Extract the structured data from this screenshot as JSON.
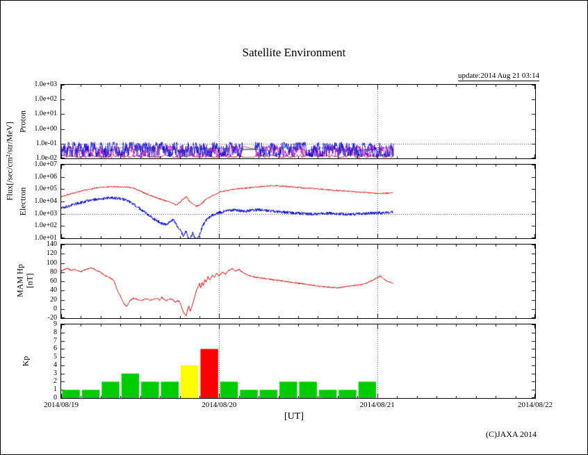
{
  "title": "Satellite Environment",
  "update_text": "update:2014 Aug 21 03:14",
  "copyright": "(C)JAXA 2014",
  "x_axis": {
    "label": "[UT]",
    "tick_labels": [
      "2014/08/19",
      "2014/08/20",
      "2014/08/21",
      "2014/08/22"
    ],
    "tick_hours": [
      0,
      24,
      48,
      72
    ],
    "range_hours": [
      0,
      72
    ]
  },
  "axis_labels": {
    "flux": "Flux[/sec/cm²/str/MeV]",
    "proton": "Proton",
    "electron": "Electron",
    "mam_hp": "MAM Hp",
    "mam_hp_unit": "[nT]",
    "kp": "Kp"
  },
  "chart_data": [
    {
      "id": "proton",
      "type": "line",
      "yscale": "log",
      "ylim": [
        0.01,
        1000
      ],
      "ytick_labels": [
        "1.0e+03",
        "1.0e+02",
        "1.0e+01",
        "1.0e+00",
        "1.0e-01",
        "1.0e-02"
      ],
      "ytick_values": [
        1000,
        100,
        10,
        1,
        0.1,
        0.01
      ],
      "x_gridlines_hours": [
        24,
        48
      ],
      "h_gridlines_values": [
        0.1
      ],
      "data_end_hour": 50.5,
      "gap_hours": [
        27.6,
        29.4
      ],
      "noise_series": [
        {
          "name": "proton-channel-darkred",
          "color": "#990000",
          "band": [
            0.011,
            0.018
          ],
          "walk": 0.2,
          "seed": 11
        },
        {
          "name": "proton-channel-green",
          "color": "#009900",
          "band": [
            0.032,
            0.055
          ],
          "walk": 0.12,
          "seed": 22
        },
        {
          "name": "proton-channel-magenta",
          "color": "#bb00bb",
          "band": [
            0.012,
            0.08
          ],
          "walk": 0.3,
          "seed": 33
        },
        {
          "name": "proton-channel-blue",
          "color": "#0000cc",
          "band": [
            0.012,
            0.13
          ],
          "walk": 0.32,
          "seed": 44
        }
      ]
    },
    {
      "id": "electron",
      "type": "line",
      "yscale": "log",
      "ylim": [
        10,
        10000000
      ],
      "ytick_labels": [
        "1.0e+07",
        "1.0e+06",
        "1.0e+05",
        "1.0e+04",
        "1.0e+03",
        "1.0e+02",
        "1.0e+01"
      ],
      "ytick_values": [
        10000000,
        1000000,
        100000,
        10000,
        1000,
        100,
        10
      ],
      "x_gridlines_hours": [
        24,
        48
      ],
      "h_gridlines_values": [
        1000
      ],
      "data_end_hour": 50.4,
      "series": [
        {
          "name": "electron-low-energy-blue",
          "color": "#0000cc",
          "noise_log": 0.12,
          "seed": 8,
          "keypoints": [
            [
              0,
              3000
            ],
            [
              1,
              4000
            ],
            [
              2,
              6000
            ],
            [
              3,
              8000
            ],
            [
              4,
              11000
            ],
            [
              5,
              14000
            ],
            [
              6,
              17000
            ],
            [
              7,
              19000
            ],
            [
              8,
              20000
            ],
            [
              9,
              17000
            ],
            [
              10,
              12000
            ],
            [
              11,
              6000
            ],
            [
              12,
              2500
            ],
            [
              13,
              1000
            ],
            [
              14,
              400
            ],
            [
              15,
              200
            ],
            [
              15.5,
              150
            ],
            [
              16,
              120
            ],
            [
              16.5,
              200
            ],
            [
              17,
              350
            ],
            [
              17.3,
              200
            ],
            [
              17.6,
              100
            ],
            [
              18,
              60
            ],
            [
              18.3,
              30
            ],
            [
              18.6,
              15
            ],
            [
              19,
              40
            ],
            [
              19.3,
              12
            ],
            [
              19.6,
              8
            ],
            [
              20,
              30
            ],
            [
              20.3,
              10
            ],
            [
              20.6,
              7
            ],
            [
              21,
              20
            ],
            [
              21.5,
              100
            ],
            [
              22,
              300
            ],
            [
              22.5,
              500
            ],
            [
              23,
              800
            ],
            [
              24,
              1200
            ],
            [
              25,
              1600
            ],
            [
              26,
              2000
            ],
            [
              27,
              1800
            ],
            [
              28,
              1600
            ],
            [
              29,
              1900
            ],
            [
              30,
              2100
            ],
            [
              31,
              1800
            ],
            [
              32,
              1600
            ],
            [
              33,
              1400
            ],
            [
              34,
              1300
            ],
            [
              35,
              1200
            ],
            [
              36,
              1100
            ],
            [
              37,
              1000
            ],
            [
              38,
              950
            ],
            [
              39,
              1000
            ],
            [
              40,
              1050
            ],
            [
              41,
              1100
            ],
            [
              42,
              1000
            ],
            [
              43,
              950
            ],
            [
              44,
              900
            ],
            [
              45,
              950
            ],
            [
              46,
              1000
            ],
            [
              47,
              1100
            ],
            [
              48,
              1150
            ],
            [
              49,
              1200
            ],
            [
              50.4,
              1300
            ]
          ]
        },
        {
          "name": "electron-high-energy-red",
          "color": "#cc0000",
          "noise_log": 0.05,
          "seed": 7,
          "keypoints": [
            [
              0,
              25000
            ],
            [
              1,
              35000
            ],
            [
              2,
              50000
            ],
            [
              3,
              70000
            ],
            [
              4,
              90000
            ],
            [
              5,
              115000
            ],
            [
              6,
              140000
            ],
            [
              7,
              155000
            ],
            [
              8,
              160000
            ],
            [
              9,
              145000
            ],
            [
              10,
              150000
            ],
            [
              11,
              120000
            ],
            [
              12,
              70000
            ],
            [
              13,
              40000
            ],
            [
              14,
              25000
            ],
            [
              15,
              16000
            ],
            [
              16,
              11000
            ],
            [
              17,
              7000
            ],
            [
              17.5,
              5000
            ],
            [
              18,
              8000
            ],
            [
              18.5,
              15000
            ],
            [
              19,
              25000
            ],
            [
              19.3,
              15000
            ],
            [
              19.6,
              9000
            ],
            [
              20,
              6000
            ],
            [
              20.5,
              4000
            ],
            [
              21,
              5000
            ],
            [
              21.5,
              8000
            ],
            [
              22,
              15000
            ],
            [
              23,
              30000
            ],
            [
              24,
              55000
            ],
            [
              25,
              75000
            ],
            [
              26,
              90000
            ],
            [
              27,
              110000
            ],
            [
              28,
              120000
            ],
            [
              29,
              140000
            ],
            [
              30,
              155000
            ],
            [
              31,
              170000
            ],
            [
              32,
              190000
            ],
            [
              33,
              185000
            ],
            [
              34,
              170000
            ],
            [
              35,
              155000
            ],
            [
              36,
              140000
            ],
            [
              37,
              125000
            ],
            [
              38,
              115000
            ],
            [
              39,
              105000
            ],
            [
              40,
              95000
            ],
            [
              41,
              85000
            ],
            [
              42,
              75000
            ],
            [
              43,
              70000
            ],
            [
              44,
              65000
            ],
            [
              45,
              60000
            ],
            [
              46,
              55000
            ],
            [
              47,
              50000
            ],
            [
              48,
              45000
            ],
            [
              49,
              45000
            ],
            [
              50.4,
              50000
            ]
          ]
        }
      ]
    },
    {
      "id": "mam-hp",
      "type": "line",
      "yscale": "linear",
      "ylim": [
        -20,
        140
      ],
      "ytick_labels": [
        "140",
        "120",
        "100",
        "80",
        "60",
        "40",
        "20",
        "0",
        "-20"
      ],
      "ytick_values": [
        140,
        120,
        100,
        80,
        60,
        40,
        20,
        0,
        -20
      ],
      "x_gridlines_hours": [
        24,
        48
      ],
      "h_gridlines_values": [],
      "data_end_hour": 50.4,
      "series": [
        {
          "name": "hp-magnetic-field",
          "color": "#cc0000",
          "noise_abs": 1.3,
          "seed": 9,
          "keypoints": [
            [
              0,
              82
            ],
            [
              0.5,
              86
            ],
            [
              1,
              88
            ],
            [
              1.5,
              84
            ],
            [
              2,
              86
            ],
            [
              2.5,
              83
            ],
            [
              3,
              81
            ],
            [
              3.5,
              84
            ],
            [
              4,
              87
            ],
            [
              4.5,
              89
            ],
            [
              5,
              87
            ],
            [
              5.5,
              83
            ],
            [
              6,
              79
            ],
            [
              6.5,
              74
            ],
            [
              7,
              70
            ],
            [
              7.5,
              67
            ],
            [
              8,
              62
            ],
            [
              8.3,
              50
            ],
            [
              8.6,
              38
            ],
            [
              9,
              28
            ],
            [
              9.3,
              18
            ],
            [
              9.6,
              10
            ],
            [
              10,
              6
            ],
            [
              10.3,
              14
            ],
            [
              10.6,
              20
            ],
            [
              11,
              23
            ],
            [
              11.5,
              21
            ],
            [
              12,
              18
            ],
            [
              12.5,
              20
            ],
            [
              13,
              22
            ],
            [
              13.5,
              19
            ],
            [
              14,
              21
            ],
            [
              14.5,
              23
            ],
            [
              15,
              19
            ],
            [
              15.3,
              26
            ],
            [
              15.6,
              21
            ],
            [
              16,
              18
            ],
            [
              16.5,
              22
            ],
            [
              17,
              20
            ],
            [
              17.3,
              14
            ],
            [
              17.6,
              18
            ],
            [
              18,
              16
            ],
            [
              18.3,
              4
            ],
            [
              18.6,
              -8
            ],
            [
              19,
              -15
            ],
            [
              19.2,
              -2
            ],
            [
              19.4,
              6
            ],
            [
              19.6,
              -6
            ],
            [
              19.8,
              2
            ],
            [
              20,
              12
            ],
            [
              20.3,
              28
            ],
            [
              20.6,
              42
            ],
            [
              21,
              55
            ],
            [
              21.2,
              45
            ],
            [
              21.4,
              58
            ],
            [
              21.6,
              50
            ],
            [
              21.8,
              64
            ],
            [
              22,
              58
            ],
            [
              22.3,
              70
            ],
            [
              22.6,
              62
            ],
            [
              23,
              74
            ],
            [
              23.3,
              68
            ],
            [
              23.6,
              78
            ],
            [
              24,
              72
            ],
            [
              24.5,
              80
            ],
            [
              25,
              76
            ],
            [
              25.5,
              84
            ],
            [
              26,
              88
            ],
            [
              26.5,
              82
            ],
            [
              27,
              86
            ],
            [
              27.5,
              80
            ],
            [
              28,
              76
            ],
            [
              28.5,
              73
            ],
            [
              29,
              70
            ],
            [
              30,
              68
            ],
            [
              31,
              66
            ],
            [
              32,
              64
            ],
            [
              33,
              62
            ],
            [
              34,
              60
            ],
            [
              35,
              58
            ],
            [
              36,
              56
            ],
            [
              37,
              54
            ],
            [
              38,
              52
            ],
            [
              39,
              50
            ],
            [
              40,
              48
            ],
            [
              41,
              47
            ],
            [
              42,
              46
            ],
            [
              43,
              48
            ],
            [
              44,
              50
            ],
            [
              45,
              52
            ],
            [
              46,
              54
            ],
            [
              47,
              60
            ],
            [
              48,
              68
            ],
            [
              48.5,
              72
            ],
            [
              49,
              65
            ],
            [
              49.5,
              60
            ],
            [
              50,
              58
            ],
            [
              50.4,
              56
            ]
          ]
        }
      ]
    },
    {
      "id": "kp",
      "type": "bar",
      "yscale": "linear",
      "ylim": [
        0,
        9
      ],
      "ytick_labels": [
        "9",
        "8",
        "7",
        "6",
        "5",
        "4",
        "3",
        "2",
        "1",
        "0"
      ],
      "ytick_values": [
        9,
        8,
        7,
        6,
        5,
        4,
        3,
        2,
        1,
        0
      ],
      "x_gridlines_hours": [
        24,
        48
      ],
      "h_gridlines_values": [],
      "bars": {
        "start_hour": 0,
        "interval_hours": 3,
        "values": [
          1,
          1,
          2,
          3,
          2,
          2,
          4,
          6,
          2,
          1,
          1,
          2,
          2,
          1,
          1,
          2
        ],
        "colors": [
          "#00cc00",
          "#00cc00",
          "#00cc00",
          "#00cc00",
          "#00cc00",
          "#00cc00",
          "#ffff00",
          "#ff0000",
          "#00cc00",
          "#00cc00",
          "#00cc00",
          "#00cc00",
          "#00cc00",
          "#00cc00",
          "#00cc00",
          "#00cc00"
        ]
      }
    }
  ],
  "status_colors": {
    "quiet": "#00cc00",
    "active": "#ffff00",
    "storm": "#ff0000"
  }
}
